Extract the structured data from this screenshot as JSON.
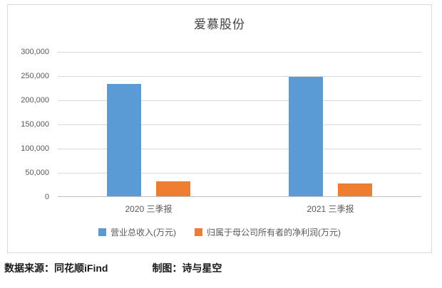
{
  "chart_data": {
    "type": "bar",
    "title": "爱慕股份",
    "categories": [
      "2020 三季报",
      "2021 三季报"
    ],
    "series": [
      {
        "name": "营业总收入(万元)",
        "color": "#5B9BD5",
        "values": [
          233000,
          247000
        ]
      },
      {
        "name": "归属于母公司所有者的净利润(万元)",
        "color": "#ED7D31",
        "values": [
          30500,
          26000
        ]
      }
    ],
    "ylim": [
      0,
      300000
    ],
    "ytick_step": 50000,
    "ytick_labels": [
      "0",
      "50,000",
      "100,000",
      "150,000",
      "200,000",
      "250,000",
      "300,000"
    ],
    "grid": true,
    "legend_position": "bottom"
  },
  "footer": {
    "source": "数据来源：同花顺iFind",
    "author": "制图：诗与星空"
  }
}
